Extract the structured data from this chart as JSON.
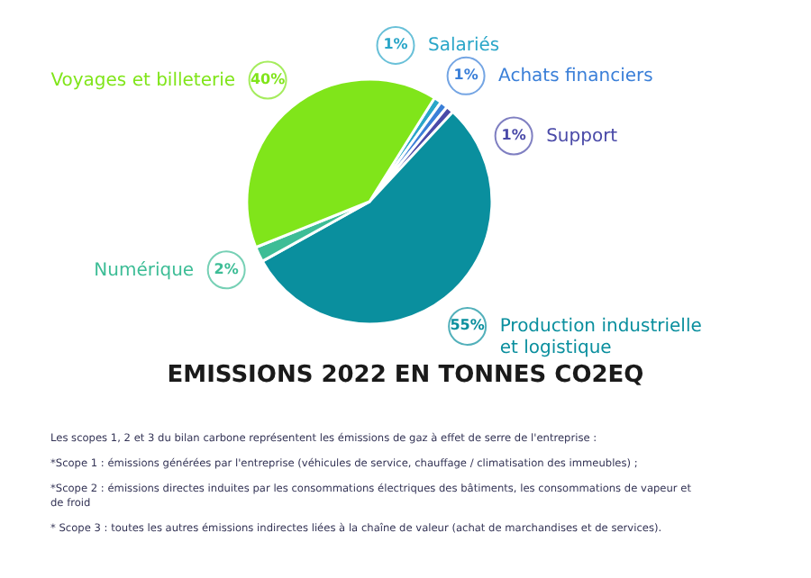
{
  "chart_data": {
    "type": "pie",
    "title": "EMISSIONS 2022 EN TONNES CO2EQ",
    "categories": [
      "Salariés",
      "Achats financiers",
      "Support",
      "Production industrielle et logistique",
      "Numérique",
      "Voyages et billeterie"
    ],
    "values": [
      1,
      1,
      1,
      55,
      2,
      40
    ],
    "value_labels": [
      "1%",
      "1%",
      "1%",
      "55%",
      "2%",
      "40%"
    ],
    "legend": "right",
    "colors": [
      "#2aa6c8",
      "#3a7fd8",
      "#4a4aa8",
      "#0a8f9e",
      "#3dbd96",
      "#80e51a"
    ],
    "annotations": [
      "Les scopes 1, 2 et 3 du bilan carbone représentent les émissions de gaz à effet de serre de l'entreprise :",
      "*Scope 1 : émissions générées par l'entreprise (véhicules de service, chauffage / climatisation des immeubles) ;",
      "*Scope 2 : émissions directes induites par les consommations électriques des bâtiments, les consommations de vapeur et de froid",
      "* Scope 3 : toutes les autres émissions indirectes liées à la chaîne de valeur (achat de marchandises et de services)."
    ]
  }
}
